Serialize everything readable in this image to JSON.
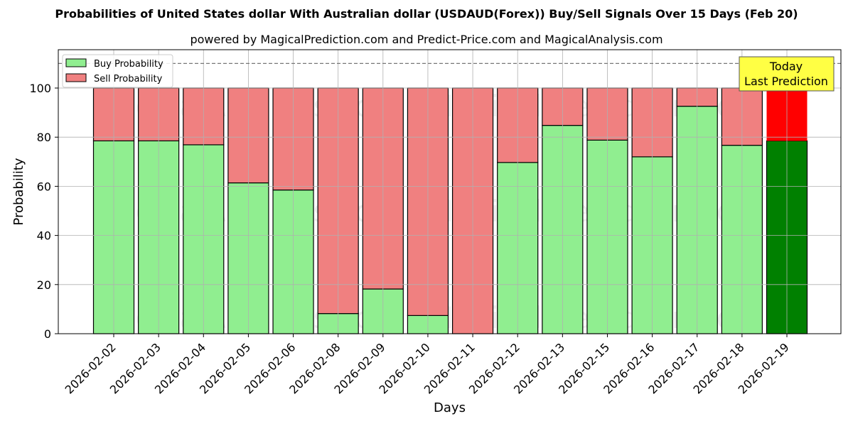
{
  "title": "Probabilities of United States dollar With Australian dollar (USDAUD(Forex)) Buy/Sell Signals Over 15 Days (Feb 20)",
  "subtitle": "powered by MagicalPrediction.com and Predict-Price.com and MagicalAnalysis.com",
  "watermarks": [
    "MagicalAnalysis.com",
    "MagicalPrediction.com"
  ],
  "annotation": {
    "line1": "Today",
    "line2": "Last Prediction"
  },
  "colors": {
    "buy": "#90ee90",
    "sell": "#f08080",
    "today_buy": "#008000",
    "today_sell": "#ff0000",
    "annotation_bg": "#ffff44"
  },
  "chart_data": {
    "type": "bar",
    "stacked": true,
    "title": "Probabilities of United States dollar With Australian dollar (USDAUD(Forex)) Buy/Sell Signals Over 15 Days (Feb 20)",
    "xlabel": "Days",
    "ylabel": "Probability",
    "ylim": [
      0,
      115
    ],
    "yticks": [
      0,
      20,
      40,
      60,
      80,
      100
    ],
    "grid": true,
    "legend_position": "upper left",
    "reference_line": 110,
    "categories": [
      "2026-02-02",
      "2026-02-03",
      "2026-02-04",
      "2026-02-05",
      "2026-02-06",
      "2026-02-08",
      "2026-02-09",
      "2026-02-10",
      "2026-02-11",
      "2026-02-12",
      "2026-02-13",
      "2026-02-15",
      "2026-02-16",
      "2026-02-17",
      "2026-02-18",
      "2026-02-19"
    ],
    "series": [
      {
        "name": "Buy Probability",
        "values": [
          78.5,
          78.5,
          76.9,
          61.4,
          58.5,
          8.2,
          18.2,
          7.4,
          0,
          69.7,
          84.8,
          78.8,
          72.0,
          92.6,
          76.7,
          78.5
        ]
      },
      {
        "name": "Sell Probability",
        "values": [
          21.5,
          21.5,
          23.1,
          38.6,
          41.5,
          91.8,
          81.8,
          92.6,
          100,
          30.3,
          15.2,
          21.2,
          28.0,
          7.4,
          23.3,
          21.5
        ]
      }
    ]
  }
}
